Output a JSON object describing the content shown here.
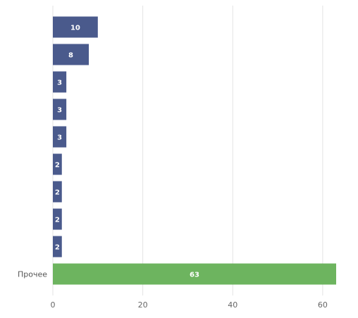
{
  "chart_data": {
    "type": "bar",
    "orientation": "horizontal",
    "categories": [
      "",
      "",
      "",
      "",
      "",
      "",
      "",
      "",
      "",
      "Прочее"
    ],
    "values": [
      10,
      8,
      3,
      3,
      3,
      2,
      2,
      2,
      2,
      63
    ],
    "data_labels": [
      "10",
      "8",
      "3",
      "3",
      "3",
      "2",
      "2",
      "2",
      "2",
      "63"
    ],
    "xlim": [
      0,
      63
    ],
    "xticks": [
      0,
      20,
      40,
      60
    ],
    "xtick_labels": [
      "0",
      "20",
      "40",
      "60"
    ],
    "grid": true,
    "legend": "none",
    "colors": {
      "default_bar": "#4a5a8c",
      "highlight_bar": "#6db45f",
      "gridline": "#e3e3e3",
      "axis_text": "#666666",
      "label_text": "#ffffff"
    },
    "highlight_category": "Прочее"
  }
}
